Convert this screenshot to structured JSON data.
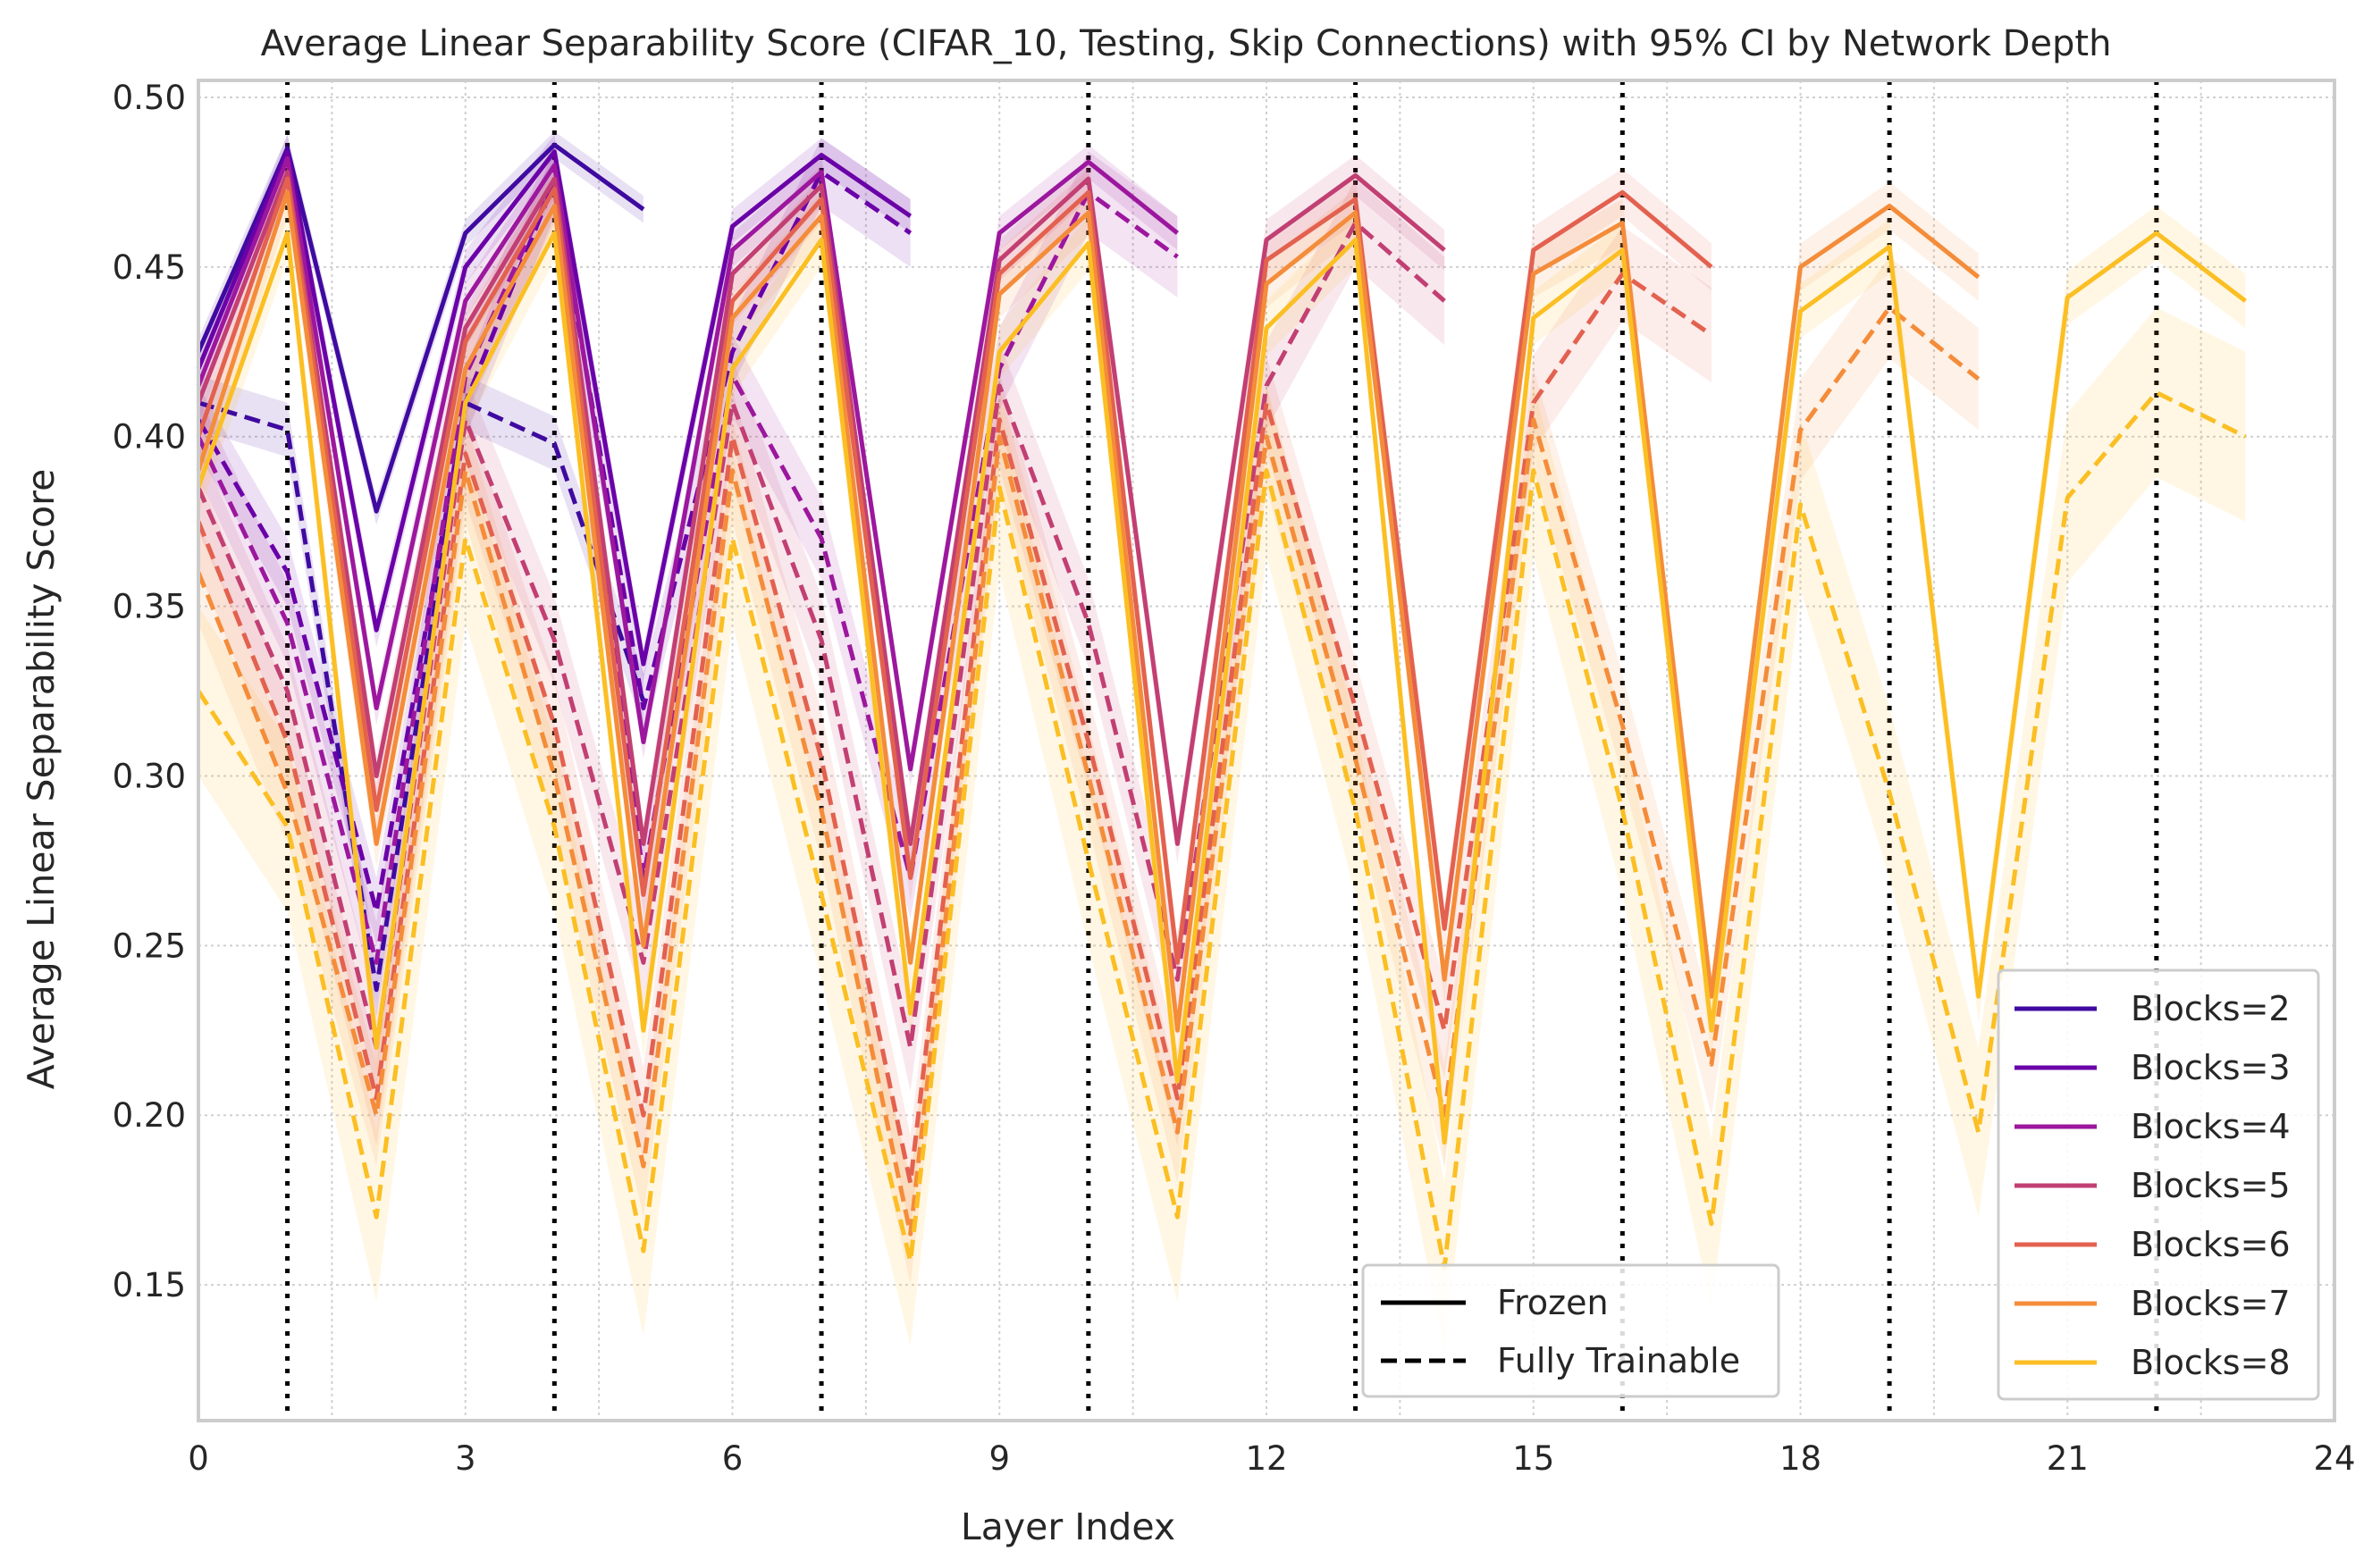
{
  "chart_data": {
    "type": "line",
    "title": "Average Linear Separability Score (CIFAR_10, Testing, Skip Connections) with 95% CI by Network Depth",
    "xlabel": "Layer Index",
    "ylabel": "Average Linear Separability Score",
    "xlim": [
      0,
      24
    ],
    "ylim": [
      0.11,
      0.505
    ],
    "xticks": [
      0,
      3,
      6,
      9,
      12,
      15,
      18,
      21,
      24
    ],
    "yticks": [
      0.15,
      0.2,
      0.25,
      0.3,
      0.35,
      0.4,
      0.45,
      0.5
    ],
    "grid": true,
    "vertical_reference_lines": [
      1,
      4,
      7,
      10,
      13,
      16,
      19,
      22
    ],
    "style_legend": {
      "placement": "lower-center-right",
      "entries": [
        {
          "label": "Frozen",
          "style": "solid"
        },
        {
          "label": "Fully Trainable",
          "style": "dashed"
        }
      ]
    },
    "depth_legend": {
      "placement": "lower-right",
      "entries": [
        {
          "label": "Blocks=2",
          "color": "#3f0aa0"
        },
        {
          "label": "Blocks=3",
          "color": "#6a00a8"
        },
        {
          "label": "Blocks=4",
          "color": "#9c179e"
        },
        {
          "label": "Blocks=5",
          "color": "#c23f73"
        },
        {
          "label": "Blocks=6",
          "color": "#e3614f"
        },
        {
          "label": "Blocks=7",
          "color": "#f48c3a"
        },
        {
          "label": "Blocks=8",
          "color": "#fbbf24"
        }
      ]
    },
    "series": [
      {
        "name": "Blocks=2",
        "mode": "Frozen",
        "color": "#3f0aa0",
        "x": [
          0,
          1,
          2,
          3,
          4,
          5
        ],
        "y": [
          0.425,
          0.485,
          0.378,
          0.46,
          0.486,
          0.467
        ],
        "ci": 0.004
      },
      {
        "name": "Blocks=2",
        "mode": "Fully Trainable",
        "color": "#3f0aa0",
        "x": [
          0,
          1,
          2,
          3,
          4,
          5
        ],
        "y": [
          0.41,
          0.402,
          0.237,
          0.41,
          0.398,
          0.322
        ],
        "ci": 0.008
      },
      {
        "name": "Blocks=3",
        "mode": "Frozen",
        "color": "#6a00a8",
        "x": [
          0,
          1,
          2,
          3,
          4,
          5,
          6,
          7,
          8
        ],
        "y": [
          0.42,
          0.484,
          0.343,
          0.45,
          0.484,
          0.333,
          0.462,
          0.483,
          0.465
        ],
        "ci": 0.005
      },
      {
        "name": "Blocks=3",
        "mode": "Fully Trainable",
        "color": "#6a00a8",
        "x": [
          0,
          1,
          2,
          3,
          4,
          5,
          6,
          7,
          8
        ],
        "y": [
          0.405,
          0.36,
          0.26,
          0.41,
          0.475,
          0.32,
          0.425,
          0.478,
          0.46
        ],
        "ci": 0.01
      },
      {
        "name": "Blocks=4",
        "mode": "Frozen",
        "color": "#9c179e",
        "x": [
          0,
          1,
          2,
          3,
          4,
          5,
          6,
          7,
          8,
          9,
          10,
          11
        ],
        "y": [
          0.415,
          0.482,
          0.32,
          0.44,
          0.48,
          0.31,
          0.455,
          0.478,
          0.302,
          0.46,
          0.481,
          0.46
        ],
        "ci": 0.005
      },
      {
        "name": "Blocks=4",
        "mode": "Fully Trainable",
        "color": "#9c179e",
        "x": [
          0,
          1,
          2,
          3,
          4,
          5,
          6,
          7,
          8,
          9,
          10,
          11
        ],
        "y": [
          0.4,
          0.345,
          0.245,
          0.418,
          0.475,
          0.27,
          0.418,
          0.37,
          0.27,
          0.42,
          0.472,
          0.453
        ],
        "ci": 0.012
      },
      {
        "name": "Blocks=5",
        "mode": "Frozen",
        "color": "#c23f73",
        "x": [
          0,
          1,
          2,
          3,
          4,
          5,
          6,
          7,
          8,
          9,
          10,
          11,
          12,
          13,
          14
        ],
        "y": [
          0.41,
          0.478,
          0.3,
          0.432,
          0.476,
          0.28,
          0.448,
          0.474,
          0.28,
          0.452,
          0.476,
          0.28,
          0.458,
          0.477,
          0.455
        ],
        "ci": 0.006
      },
      {
        "name": "Blocks=5",
        "mode": "Fully Trainable",
        "color": "#c23f73",
        "x": [
          0,
          1,
          2,
          3,
          4,
          5,
          6,
          7,
          8,
          9,
          10,
          11,
          12,
          13,
          14
        ],
        "y": [
          0.385,
          0.325,
          0.22,
          0.405,
          0.34,
          0.245,
          0.41,
          0.34,
          0.22,
          0.415,
          0.345,
          0.24,
          0.415,
          0.463,
          0.44
        ],
        "ci": 0.013
      },
      {
        "name": "Blocks=6",
        "mode": "Frozen",
        "color": "#e3614f",
        "x": [
          0,
          1,
          2,
          3,
          4,
          5,
          6,
          7,
          8,
          9,
          10,
          11,
          12,
          13,
          14,
          15,
          16,
          17
        ],
        "y": [
          0.4,
          0.476,
          0.29,
          0.428,
          0.473,
          0.265,
          0.44,
          0.47,
          0.27,
          0.448,
          0.472,
          0.245,
          0.452,
          0.47,
          0.255,
          0.455,
          0.472,
          0.45
        ],
        "ci": 0.007
      },
      {
        "name": "Blocks=6",
        "mode": "Fully Trainable",
        "color": "#e3614f",
        "x": [
          0,
          1,
          2,
          3,
          4,
          5,
          6,
          7,
          8,
          9,
          10,
          11,
          12,
          13,
          14,
          15,
          16,
          17
        ],
        "y": [
          0.375,
          0.31,
          0.205,
          0.395,
          0.315,
          0.2,
          0.4,
          0.305,
          0.18,
          0.405,
          0.31,
          0.205,
          0.41,
          0.32,
          0.225,
          0.41,
          0.448,
          0.43
        ],
        "ci": 0.014
      },
      {
        "name": "Blocks=7",
        "mode": "Frozen",
        "color": "#f48c3a",
        "x": [
          0,
          1,
          2,
          3,
          4,
          5,
          6,
          7,
          8,
          9,
          10,
          11,
          12,
          13,
          14,
          15,
          16,
          17,
          18,
          19,
          20
        ],
        "y": [
          0.39,
          0.472,
          0.28,
          0.42,
          0.468,
          0.25,
          0.435,
          0.465,
          0.245,
          0.442,
          0.466,
          0.225,
          0.445,
          0.466,
          0.24,
          0.448,
          0.463,
          0.235,
          0.45,
          0.468,
          0.447
        ],
        "ci": 0.007
      },
      {
        "name": "Blocks=7",
        "mode": "Fully Trainable",
        "color": "#f48c3a",
        "x": [
          0,
          1,
          2,
          3,
          4,
          5,
          6,
          7,
          8,
          9,
          10,
          11,
          12,
          13,
          14,
          15,
          16,
          17,
          18,
          19,
          20
        ],
        "y": [
          0.36,
          0.295,
          0.2,
          0.39,
          0.3,
          0.185,
          0.39,
          0.29,
          0.165,
          0.4,
          0.3,
          0.195,
          0.4,
          0.305,
          0.2,
          0.405,
          0.315,
          0.215,
          0.402,
          0.438,
          0.417
        ],
        "ci": 0.015
      },
      {
        "name": "Blocks=8",
        "mode": "Frozen",
        "color": "#fbbf24",
        "x": [
          0,
          1,
          2,
          3,
          4,
          5,
          6,
          7,
          8,
          9,
          10,
          11,
          12,
          13,
          14,
          15,
          16,
          17,
          18,
          19,
          20,
          21,
          22,
          23
        ],
        "y": [
          0.385,
          0.46,
          0.22,
          0.41,
          0.46,
          0.225,
          0.42,
          0.458,
          0.23,
          0.425,
          0.457,
          0.21,
          0.432,
          0.458,
          0.192,
          0.435,
          0.455,
          0.225,
          0.437,
          0.456,
          0.235,
          0.441,
          0.46,
          0.44
        ],
        "ci": 0.008
      },
      {
        "name": "Blocks=8",
        "mode": "Fully Trainable",
        "color": "#fbbf24",
        "x": [
          0,
          1,
          2,
          3,
          4,
          5,
          6,
          7,
          8,
          9,
          10,
          11,
          12,
          13,
          14,
          15,
          16,
          17,
          18,
          19,
          20,
          21,
          22,
          23
        ],
        "y": [
          0.325,
          0.285,
          0.17,
          0.37,
          0.285,
          0.16,
          0.37,
          0.265,
          0.157,
          0.385,
          0.275,
          0.17,
          0.39,
          0.29,
          0.155,
          0.39,
          0.29,
          0.168,
          0.38,
          0.295,
          0.195,
          0.382,
          0.413,
          0.4
        ],
        "ci": 0.025
      }
    ]
  }
}
